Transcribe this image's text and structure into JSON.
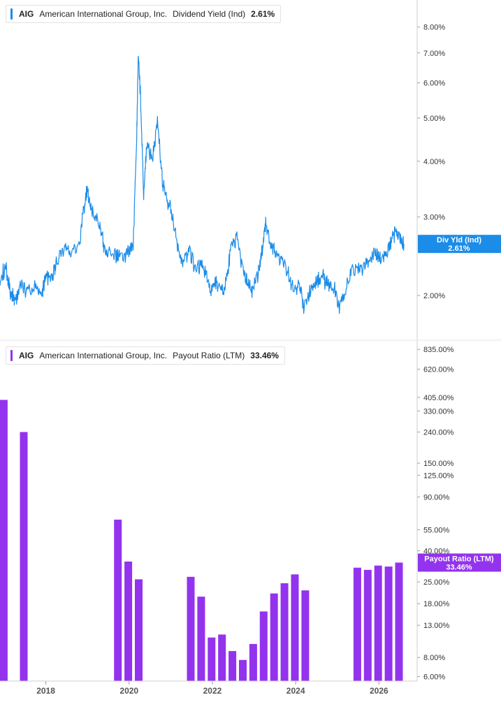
{
  "colors": {
    "yield_line": "#1b8ce8",
    "payout_bar": "#9333ee",
    "axis": "#cfcfcf",
    "tag_text": "#ffffff"
  },
  "top_panel": {
    "legend": {
      "ticker": "AIG",
      "company": "American International Group, Inc.",
      "metric": "Dividend Yield (Ind)",
      "value": "2.61%"
    },
    "tag": {
      "label": "Div Yld (Ind)",
      "value": "2.61%"
    }
  },
  "bottom_panel": {
    "legend": {
      "ticker": "AIG",
      "company": "American International Group, Inc.",
      "metric": "Payout Ratio (LTM)",
      "value": "33.46%"
    },
    "tag": {
      "label": "Payout Ratio (LTM)",
      "value": "33.46%"
    }
  },
  "chart_data": [
    {
      "type": "line",
      "series_name": "Dividend Yield (Ind)",
      "scale": "log",
      "y_unit": "%",
      "ylim": [
        1.75,
        9.2
      ],
      "y_ticks": [
        "8.00%",
        "7.00%",
        "6.00%",
        "5.00%",
        "4.00%",
        "3.00%",
        "2.00%"
      ],
      "y_tick_values": [
        8,
        7,
        6,
        5,
        4,
        3,
        2
      ],
      "x_ticks": [
        "2018",
        "2020",
        "2022",
        "2024",
        "2026"
      ],
      "xlim": [
        2016.9,
        2026.9
      ],
      "points": [
        [
          2016.9,
          2.22
        ],
        [
          2017.05,
          2.27
        ],
        [
          2017.15,
          2.05
        ],
        [
          2017.25,
          1.95
        ],
        [
          2017.4,
          2.12
        ],
        [
          2017.55,
          2.05
        ],
        [
          2017.75,
          2.08
        ],
        [
          2017.9,
          2.02
        ],
        [
          2018.0,
          2.22
        ],
        [
          2018.15,
          2.17
        ],
        [
          2018.25,
          2.38
        ],
        [
          2018.45,
          2.52
        ],
        [
          2018.6,
          2.5
        ],
        [
          2018.8,
          2.55
        ],
        [
          2018.9,
          3.1
        ],
        [
          2019.0,
          3.45
        ],
        [
          2019.1,
          3.05
        ],
        [
          2019.25,
          2.95
        ],
        [
          2019.35,
          2.7
        ],
        [
          2019.45,
          2.5
        ],
        [
          2019.6,
          2.42
        ],
        [
          2019.75,
          2.47
        ],
        [
          2019.9,
          2.44
        ],
        [
          2020.0,
          2.55
        ],
        [
          2020.1,
          2.6
        ],
        [
          2020.18,
          4.5
        ],
        [
          2020.22,
          6.8
        ],
        [
          2020.28,
          5.5
        ],
        [
          2020.35,
          3.3
        ],
        [
          2020.42,
          4.4
        ],
        [
          2020.55,
          4.0
        ],
        [
          2020.68,
          4.9
        ],
        [
          2020.8,
          3.6
        ],
        [
          2020.9,
          3.3
        ],
        [
          2021.0,
          3.15
        ],
        [
          2021.15,
          2.6
        ],
        [
          2021.3,
          2.35
        ],
        [
          2021.45,
          2.5
        ],
        [
          2021.6,
          2.3
        ],
        [
          2021.75,
          2.35
        ],
        [
          2021.9,
          2.15
        ],
        [
          2022.0,
          2.05
        ],
        [
          2022.1,
          2.15
        ],
        [
          2022.25,
          2.05
        ],
        [
          2022.35,
          2.2
        ],
        [
          2022.45,
          2.55
        ],
        [
          2022.6,
          2.7
        ],
        [
          2022.75,
          2.25
        ],
        [
          2022.85,
          2.15
        ],
        [
          2022.95,
          2.05
        ],
        [
          2023.1,
          2.22
        ],
        [
          2023.2,
          2.55
        ],
        [
          2023.28,
          2.9
        ],
        [
          2023.38,
          2.65
        ],
        [
          2023.5,
          2.5
        ],
        [
          2023.65,
          2.4
        ],
        [
          2023.8,
          2.3
        ],
        [
          2023.95,
          2.05
        ],
        [
          2024.1,
          2.1
        ],
        [
          2024.2,
          1.87
        ],
        [
          2024.35,
          2.05
        ],
        [
          2024.5,
          2.15
        ],
        [
          2024.65,
          2.2
        ],
        [
          2024.8,
          2.1
        ],
        [
          2024.95,
          2.05
        ],
        [
          2025.05,
          1.87
        ],
        [
          2025.15,
          2.0
        ],
        [
          2025.3,
          2.2
        ],
        [
          2025.45,
          2.33
        ],
        [
          2025.6,
          2.25
        ],
        [
          2025.75,
          2.4
        ],
        [
          2025.9,
          2.5
        ],
        [
          2026.05,
          2.4
        ],
        [
          2026.2,
          2.55
        ],
        [
          2026.3,
          2.65
        ],
        [
          2026.4,
          2.8
        ],
        [
          2026.5,
          2.7
        ],
        [
          2026.6,
          2.61
        ]
      ]
    },
    {
      "type": "bar",
      "series_name": "Payout Ratio (LTM)",
      "scale": "log",
      "y_unit": "%",
      "ylim": [
        5.6,
        950
      ],
      "y_ticks": [
        "835.00%",
        "620.00%",
        "405.00%",
        "330.00%",
        "240.00%",
        "150.00%",
        "125.00%",
        "90.00%",
        "55.00%",
        "40.00%",
        "25.00%",
        "18.00%",
        "13.00%",
        "8.00%",
        "6.00%"
      ],
      "y_tick_values": [
        835,
        620,
        405,
        330,
        240,
        150,
        125,
        90,
        55,
        40,
        25,
        18,
        13,
        8,
        6
      ],
      "x_ticks": [
        "2018",
        "2020",
        "2022",
        "2024",
        "2026"
      ],
      "xlim": [
        2016.9,
        2026.9
      ],
      "points": [
        [
          2016.99,
          390
        ],
        [
          2017.47,
          240
        ],
        [
          2019.73,
          64
        ],
        [
          2019.98,
          34
        ],
        [
          2020.23,
          26
        ],
        [
          2021.48,
          27
        ],
        [
          2021.73,
          20
        ],
        [
          2021.98,
          10.8
        ],
        [
          2022.23,
          11.3
        ],
        [
          2022.48,
          8.8
        ],
        [
          2022.73,
          7.7
        ],
        [
          2022.98,
          9.8
        ],
        [
          2023.23,
          16
        ],
        [
          2023.48,
          21
        ],
        [
          2023.73,
          24.5
        ],
        [
          2023.98,
          28
        ],
        [
          2024.23,
          22
        ],
        [
          2025.48,
          31
        ],
        [
          2025.73,
          30
        ],
        [
          2025.98,
          32
        ],
        [
          2026.23,
          31.5
        ],
        [
          2026.48,
          33.46
        ]
      ]
    }
  ]
}
